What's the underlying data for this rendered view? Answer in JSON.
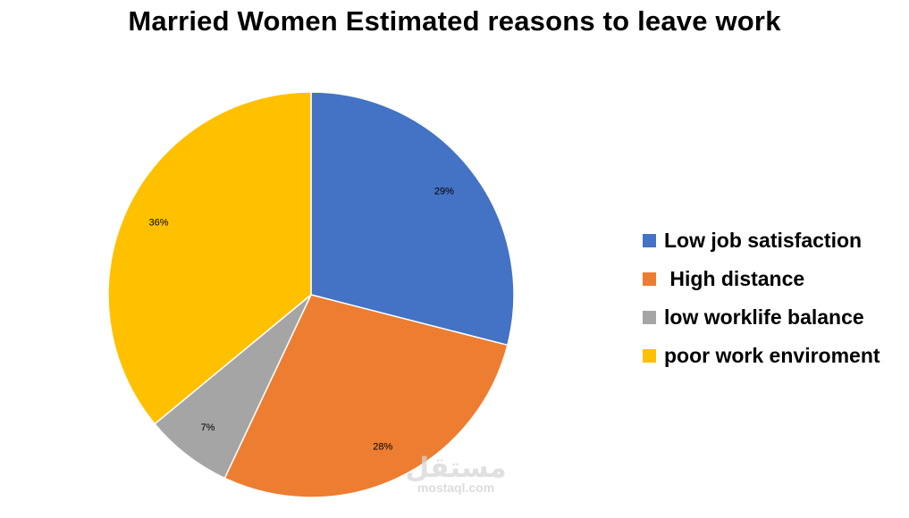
{
  "chart_data": {
    "type": "pie",
    "title": "Married Women Estimated reasons to leave work",
    "legend_position": "right",
    "slices": [
      {
        "label": "Low job satisfaction",
        "value": 29,
        "display": "29%",
        "color": "#4472C4"
      },
      {
        "label": " High distance",
        "value": 28,
        "display": "28%",
        "color": "#ED7D31"
      },
      {
        "label": "low worklife balance",
        "value": 7,
        "display": "7%",
        "color": "#A5A5A5"
      },
      {
        "label": "poor work enviroment",
        "value": 36,
        "display": "36%",
        "color": "#FFC000"
      }
    ]
  },
  "watermark": {
    "logo_text": "مستقل",
    "site": "mostaql.com"
  }
}
